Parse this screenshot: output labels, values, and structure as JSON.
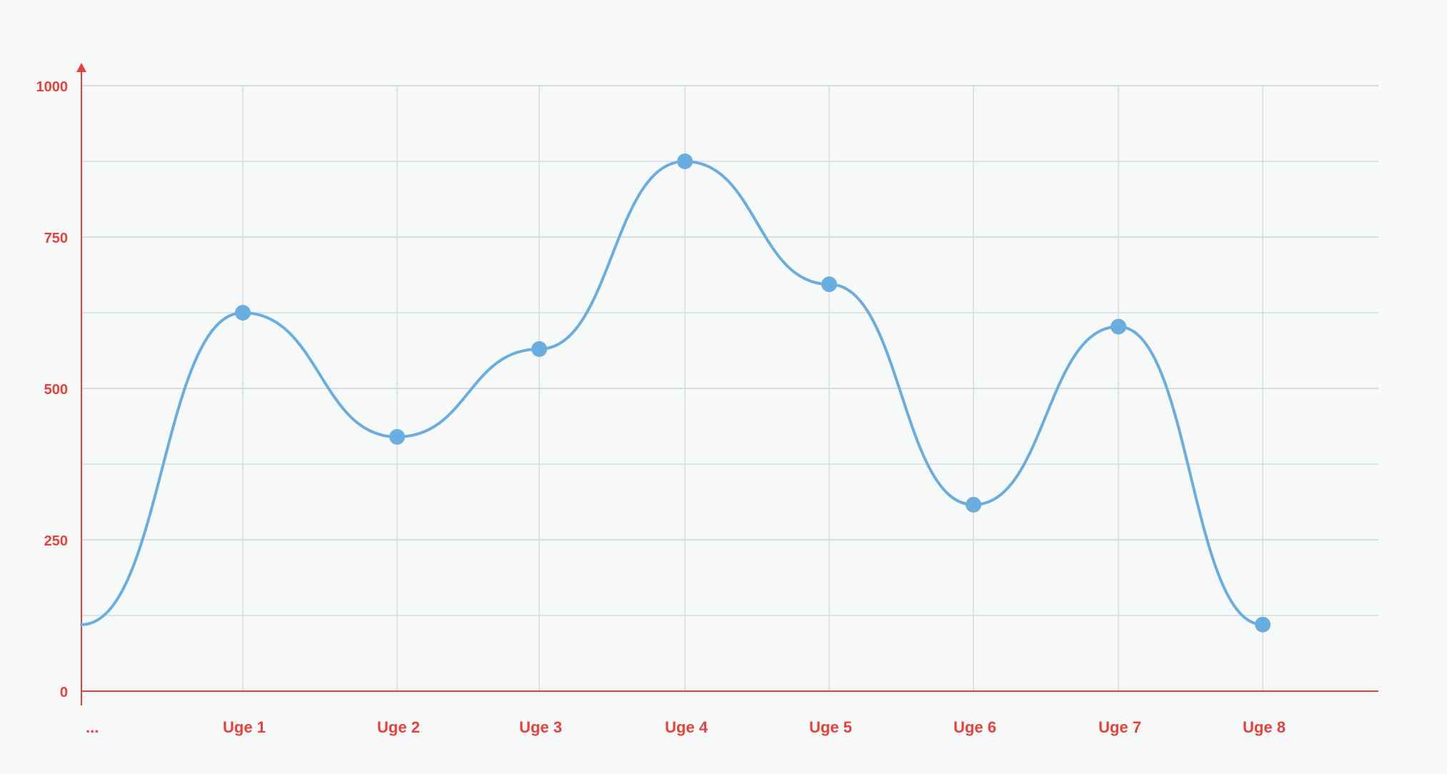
{
  "chart_data": {
    "type": "line",
    "title": "",
    "xlabel": "",
    "ylabel": "",
    "categories": [
      "...",
      "Uge 1",
      "Uge 2",
      "Uge 3",
      "Uge 4",
      "Uge 5",
      "Uge 6",
      "Uge 7",
      "Uge 8"
    ],
    "series": [
      {
        "values": [
          110,
          625,
          420,
          565,
          875,
          672,
          308,
          602,
          110
        ],
        "markers": [
          false,
          true,
          true,
          true,
          true,
          true,
          true,
          true,
          true
        ]
      }
    ],
    "y_ticks": [
      "0",
      "250",
      "500",
      "750",
      "1000"
    ],
    "ylim": [
      0,
      1000
    ],
    "grid": true,
    "smooth": true,
    "legend": "none"
  },
  "colors": {
    "axis": "#e8413c",
    "tick_label": "#e8413c",
    "series_line": "#6aaee0",
    "marker": "#6aaee0",
    "grid": "#d6dcdf",
    "background": "#f7f9f9"
  }
}
